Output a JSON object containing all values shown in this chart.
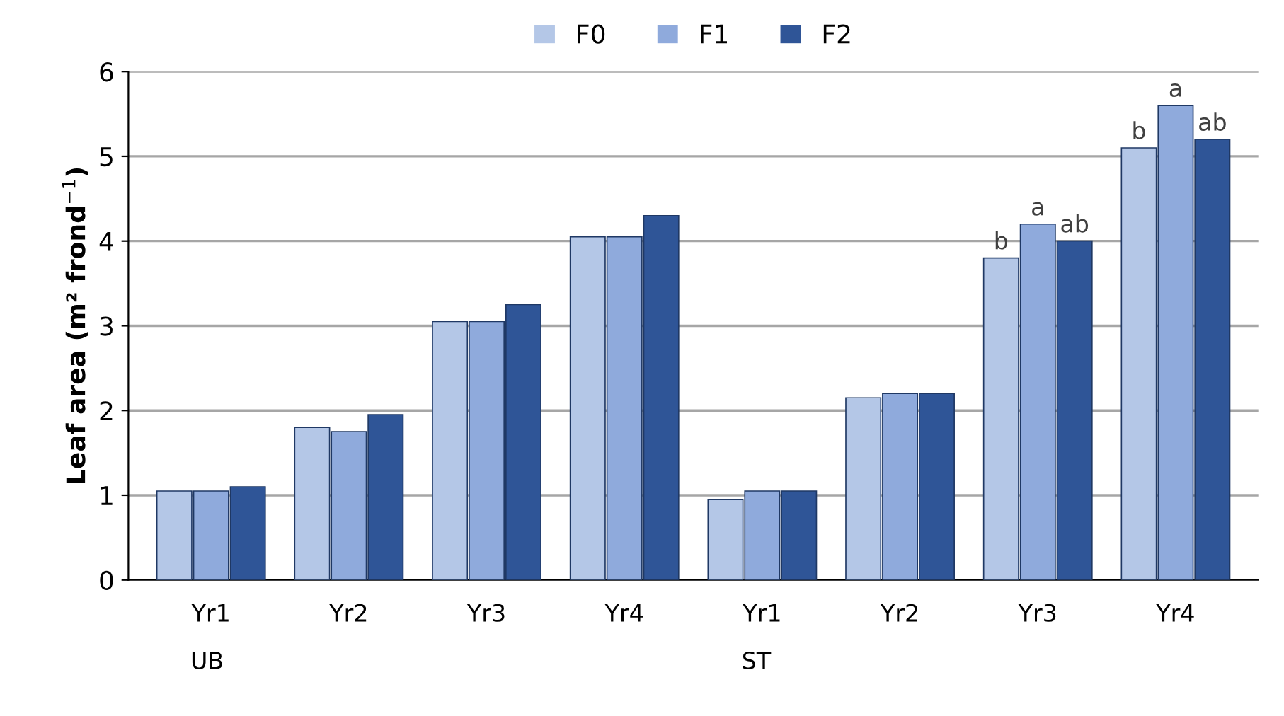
{
  "chart_data": {
    "type": "bar",
    "ylabel": "Leaf area (m² frond$^{−1}$)",
    "categories": [
      "Yr1",
      "Yr2",
      "Yr3",
      "Yr4",
      "Yr1",
      "Yr2",
      "Yr3",
      "Yr4"
    ],
    "series": [
      {
        "name": "F0",
        "color": "#b4c7e7",
        "values": [
          1.05,
          1.8,
          3.05,
          4.05,
          0.95,
          2.15,
          3.8,
          5.1
        ],
        "value_labels": [
          null,
          null,
          null,
          null,
          null,
          null,
          "b",
          "b"
        ]
      },
      {
        "name": "F1",
        "color": "#8faadc",
        "values": [
          1.05,
          1.75,
          3.05,
          4.05,
          1.05,
          2.2,
          4.2,
          5.6
        ],
        "value_labels": [
          null,
          null,
          null,
          null,
          null,
          null,
          "a",
          "a"
        ]
      },
      {
        "name": "F2",
        "color": "#2f5597",
        "values": [
          1.1,
          1.95,
          3.25,
          4.3,
          1.05,
          2.2,
          4.0,
          5.2
        ],
        "value_labels": [
          null,
          null,
          null,
          null,
          null,
          null,
          "ab",
          "ab"
        ]
      }
    ],
    "annotations": [
      "UB",
      "ST"
    ],
    "ylim": [
      0,
      6
    ],
    "yticks": [
      0,
      1,
      2,
      3,
      4,
      5,
      6
    ],
    "grid": "y",
    "legend": "top"
  }
}
